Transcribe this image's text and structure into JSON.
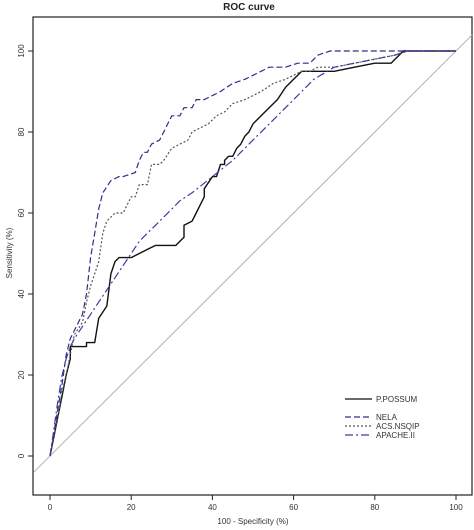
{
  "chart_data": {
    "type": "line",
    "title": "ROC curve",
    "xlabel": "100 - Specificity (%)",
    "ylabel": "Sensitivity (%)",
    "xlim": [
      0,
      100
    ],
    "ylim": [
      0,
      100
    ],
    "xticks": [
      "0",
      "20",
      "40",
      "60",
      "80",
      "100"
    ],
    "yticks": [
      "0",
      "20",
      "40",
      "60",
      "80",
      "100"
    ],
    "legend_position": "bottom-right",
    "reference_line": {
      "x": [
        -4,
        104
      ],
      "y": [
        -4,
        104
      ],
      "color": "#b0b0b0"
    },
    "series": [
      {
        "name": "P.POSSUM",
        "color": "#111111",
        "dash": "solid",
        "x": [
          0,
          1,
          2,
          3,
          4,
          5,
          5,
          9,
          9,
          11,
          12,
          14,
          15,
          16,
          17,
          20,
          22,
          24,
          26,
          31,
          32,
          33,
          33,
          35,
          36,
          37,
          38,
          38,
          40,
          41,
          42,
          43,
          43,
          44,
          45,
          46,
          47,
          48,
          49,
          50,
          52,
          54,
          56,
          58,
          60,
          61,
          62,
          63,
          65,
          67,
          70,
          75,
          80,
          84,
          86,
          87,
          88,
          90,
          95,
          100
        ],
        "y": [
          0,
          5,
          10,
          15,
          20,
          24,
          27,
          27,
          28,
          28,
          34,
          37,
          45,
          48,
          49,
          49,
          50,
          51,
          52,
          52,
          53,
          54,
          57,
          58,
          60,
          62,
          64,
          66,
          69,
          69,
          72,
          72,
          73,
          74,
          74,
          76,
          77,
          79,
          80,
          82,
          84,
          86,
          88,
          91,
          93,
          94,
          95,
          95,
          95,
          95,
          95,
          96,
          97,
          97,
          99,
          100,
          100,
          100,
          100,
          100
        ]
      },
      {
        "name": "NELA",
        "color": "#2e2e8a",
        "dash": "6,3",
        "x": [
          0,
          1,
          2,
          3,
          4,
          5,
          6,
          8,
          9,
          10,
          11,
          12,
          13,
          15,
          17,
          18,
          21,
          22,
          23,
          24,
          25,
          27,
          28,
          29,
          30,
          32,
          33,
          35,
          36,
          38,
          40,
          42,
          45,
          48,
          50,
          52,
          54,
          56,
          58,
          61,
          64,
          66,
          69,
          72,
          74,
          78,
          82,
          87,
          90,
          100
        ],
        "y": [
          0,
          6,
          12,
          18,
          25,
          29,
          31,
          35,
          40,
          49,
          55,
          61,
          65,
          68,
          69,
          69,
          70,
          73,
          75,
          75,
          77,
          78,
          80,
          82,
          84,
          84,
          86,
          86,
          88,
          88,
          89,
          90,
          92,
          93,
          94,
          95,
          96,
          96,
          96,
          97,
          97,
          99,
          100,
          100,
          100,
          100,
          100,
          100,
          100,
          100
        ]
      },
      {
        "name": "ACS.NSQIP",
        "color": "#555555",
        "dash": "2,2",
        "x": [
          0,
          1,
          2,
          3,
          4,
          5,
          6,
          8,
          9,
          10,
          11,
          12,
          13,
          14,
          16,
          18,
          20,
          21,
          22,
          24,
          25,
          27,
          28,
          30,
          32,
          34,
          35,
          37,
          39,
          41,
          43,
          45,
          48,
          50,
          52,
          55,
          58,
          60,
          62,
          64,
          66,
          70,
          75,
          80,
          85,
          88,
          100
        ],
        "y": [
          0,
          5,
          10,
          16,
          20,
          25,
          30,
          33,
          38,
          42,
          45,
          48,
          55,
          58,
          60,
          60,
          64,
          64,
          67,
          67,
          72,
          72,
          73,
          76,
          77,
          78,
          80,
          81,
          82,
          84,
          85,
          87,
          88,
          89,
          90,
          92,
          93,
          94,
          95,
          95,
          96,
          96,
          97,
          98,
          99,
          100,
          100
        ]
      },
      {
        "name": "APACHE.II",
        "color": "#3c3ca6",
        "dash": "8,3,2,3",
        "x": [
          0,
          1,
          2,
          3,
          4,
          5,
          6,
          8,
          10,
          12,
          14,
          16,
          18,
          20,
          22,
          24,
          26,
          28,
          30,
          32,
          35,
          40,
          45,
          50,
          55,
          60,
          65,
          70,
          75,
          80,
          85,
          88,
          100
        ],
        "y": [
          0,
          7,
          14,
          20,
          24,
          27,
          29,
          32,
          35,
          38,
          41,
          44,
          47,
          50,
          53,
          55,
          57,
          59,
          61,
          63,
          65,
          69,
          73,
          78,
          83,
          88,
          93,
          96,
          97,
          98,
          99,
          100,
          100
        ]
      }
    ]
  }
}
